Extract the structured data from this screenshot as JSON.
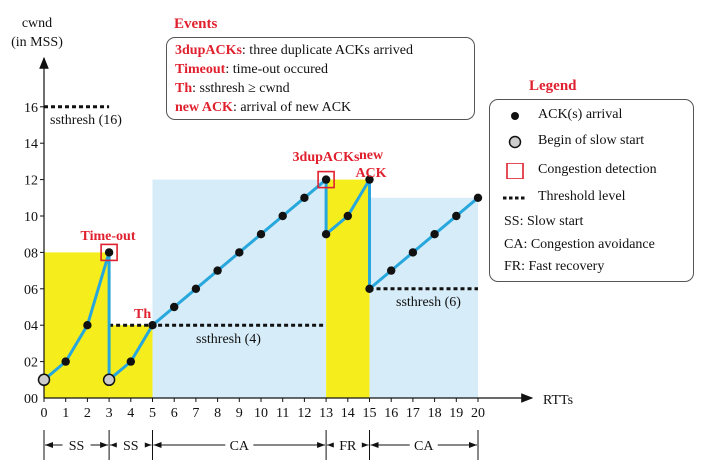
{
  "axes": {
    "y_label_line1": "cwnd",
    "y_label_line2": "(in MSS)",
    "x_label": "RTTs",
    "y_ticks": [
      "00",
      "02",
      "04",
      "06",
      "08",
      "10",
      "12",
      "14",
      "16"
    ],
    "x_ticks": [
      "0",
      "1",
      "2",
      "3",
      "4",
      "5",
      "6",
      "7",
      "8",
      "9",
      "10",
      "11",
      "12",
      "13",
      "14",
      "15",
      "16",
      "17",
      "18",
      "19",
      "20"
    ]
  },
  "annotations": {
    "timeout": "Time-out",
    "th": "Th",
    "dupacks": "3dupACKs",
    "newack_line1": "new",
    "newack_line2": "ACK",
    "ssthresh16": "ssthresh (16)",
    "ssthresh4": "ssthresh (4)",
    "ssthresh6": "ssthresh (6)"
  },
  "phases": [
    {
      "label": "SS",
      "from": 0,
      "to": 3
    },
    {
      "label": "SS",
      "from": 3,
      "to": 5
    },
    {
      "label": "CA",
      "from": 5,
      "to": 13
    },
    {
      "label": "FR",
      "from": 13,
      "to": 15
    },
    {
      "label": "CA",
      "from": 15,
      "to": 20
    }
  ],
  "regions": [
    {
      "kind": "slow-start",
      "from": 0,
      "to": 3,
      "height": 8,
      "color": "#f6ee1c"
    },
    {
      "kind": "slow-start",
      "from": 3,
      "to": 5,
      "height": 4,
      "color": "#f6ee1c"
    },
    {
      "kind": "congestion-avoidance",
      "from": 5,
      "to": 13,
      "height": 12,
      "color": "#d6ecf8"
    },
    {
      "kind": "fast-recovery",
      "from": 13,
      "to": 15,
      "height": 12,
      "color": "#f6ee1c"
    },
    {
      "kind": "congestion-avoidance",
      "from": 15,
      "to": 20,
      "height": 11,
      "color": "#d6ecf8"
    }
  ],
  "cwnd_trace": [
    [
      [
        0,
        1
      ],
      [
        1,
        2
      ],
      [
        2,
        4
      ],
      [
        3,
        8
      ],
      [
        3,
        1
      ],
      [
        4,
        2
      ],
      [
        5,
        4
      ],
      [
        6,
        5
      ],
      [
        7,
        6
      ],
      [
        8,
        7
      ],
      [
        9,
        8
      ],
      [
        10,
        9
      ],
      [
        11,
        10
      ],
      [
        12,
        11
      ],
      [
        13,
        12
      ],
      [
        13,
        9
      ],
      [
        14,
        10
      ],
      [
        15,
        12
      ],
      [
        15,
        6
      ],
      [
        16,
        7
      ],
      [
        17,
        8
      ],
      [
        18,
        9
      ],
      [
        19,
        10
      ],
      [
        20,
        11
      ]
    ]
  ],
  "ack_points": [
    [
      1,
      2
    ],
    [
      2,
      4
    ],
    [
      3,
      8
    ],
    [
      4,
      2
    ],
    [
      5,
      4
    ],
    [
      6,
      5
    ],
    [
      7,
      6
    ],
    [
      8,
      7
    ],
    [
      9,
      8
    ],
    [
      10,
      9
    ],
    [
      11,
      10
    ],
    [
      12,
      11
    ],
    [
      13,
      12
    ],
    [
      13,
      9
    ],
    [
      14,
      10
    ],
    [
      15,
      12
    ],
    [
      15,
      6
    ],
    [
      16,
      7
    ],
    [
      17,
      8
    ],
    [
      18,
      9
    ],
    [
      19,
      10
    ],
    [
      20,
      11
    ]
  ],
  "slow_start_points": [
    [
      0,
      1
    ],
    [
      3,
      1
    ]
  ],
  "congestion_points": [
    [
      3,
      8
    ],
    [
      13,
      12
    ]
  ],
  "thresholds": [
    {
      "from": 0,
      "to": 3,
      "value": 16
    },
    {
      "from": 3,
      "to": 13,
      "value": 4
    },
    {
      "from": 15,
      "to": 20,
      "value": 6
    }
  ],
  "events": {
    "title": "Events",
    "items": [
      {
        "key": "3dupACKs",
        "text": ": three duplicate ACKs arrived"
      },
      {
        "key": "Timeout",
        "text": ": time-out occured"
      },
      {
        "key": "Th",
        "text": ": ssthresh ≥  cwnd"
      },
      {
        "key": "new ACK",
        "text": ": arrival of new ACK"
      }
    ]
  },
  "legend": {
    "title": "Legend",
    "items": [
      {
        "symbol": "dot",
        "text": "ACK(s) arrival"
      },
      {
        "symbol": "circle",
        "text": "Begin of slow start"
      },
      {
        "symbol": "square",
        "text": "Congestion detection"
      },
      {
        "symbol": "dash",
        "text": "Threshold level"
      },
      {
        "symbol": "none",
        "text": "SS:  Slow start"
      },
      {
        "symbol": "none",
        "text": "CA:  Congestion avoidance"
      },
      {
        "symbol": "none",
        "text": "FR:  Fast recovery"
      }
    ]
  },
  "colors": {
    "line": "#28a7dc",
    "accent": "#e0202e",
    "yellow": "#f6ee1c",
    "blue": "#d6ecf8"
  }
}
